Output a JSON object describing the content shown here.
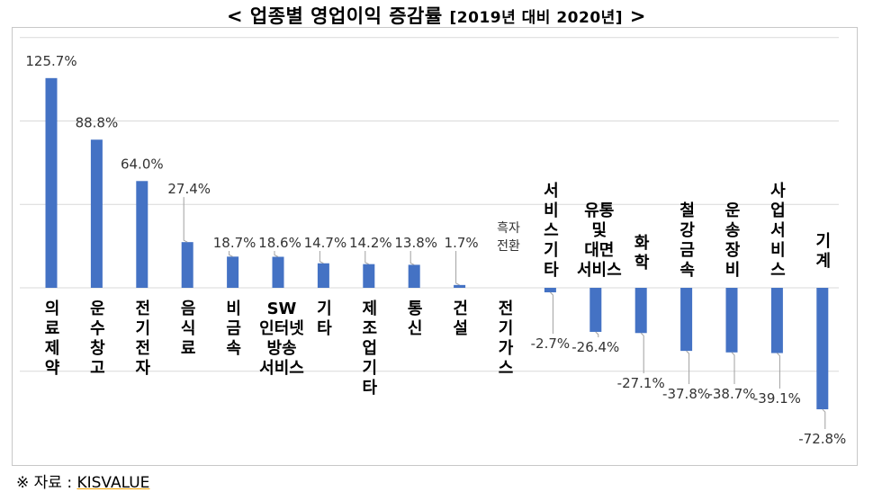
{
  "title": {
    "main": "< 업종별 영업이익 증감률",
    "sub": "[2019년 대비 2020년]",
    "end": ">"
  },
  "source": {
    "prefix": "※ 자료 :",
    "name": "KISVALUE"
  },
  "chart_data": {
    "type": "bar",
    "title": "< 업종별 영업이익 증감률 [2019년 대비 2020년] >",
    "xlabel": "",
    "ylabel": "",
    "unit": "%",
    "ylim": [
      -75,
      140
    ],
    "grid": true,
    "legend": "none",
    "bar_color": "#4472c4",
    "categories": [
      [
        "의",
        "료",
        "제",
        "약"
      ],
      [
        "운",
        "수",
        "창",
        "고"
      ],
      [
        "전",
        "기",
        "전",
        "자"
      ],
      [
        "음",
        "식",
        "료"
      ],
      [
        "비",
        "금",
        "속"
      ],
      [
        "SW",
        "인터넷",
        "방송",
        "서비스"
      ],
      [
        "기",
        "타"
      ],
      [
        "제",
        "조",
        "업",
        "기",
        "타"
      ],
      [
        "통",
        "신"
      ],
      [
        "건",
        "설"
      ],
      [
        "전",
        "기",
        "가",
        "스"
      ],
      [
        "서",
        "비",
        "스",
        "기",
        "타"
      ],
      [
        "유통",
        "및",
        "대면",
        "서비스"
      ],
      [
        "화",
        "학"
      ],
      [
        "철",
        "강",
        "금",
        "속"
      ],
      [
        "운",
        "송",
        "장",
        "비"
      ],
      [
        "사",
        "업",
        "서",
        "비",
        "스"
      ],
      [
        "기",
        "계"
      ]
    ],
    "values": [
      125.7,
      88.8,
      64.0,
      27.4,
      18.7,
      18.6,
      14.7,
      14.2,
      13.8,
      1.7,
      null,
      -2.7,
      -26.4,
      -27.1,
      -37.8,
      -38.7,
      -39.1,
      -72.8
    ],
    "data_labels": [
      "125.7%",
      "88.8%",
      "64.0%",
      "27.4%",
      "18.7%",
      "18.6%",
      "14.7%",
      "14.2%",
      "13.8%",
      "1.7%",
      "흑자\n전환",
      "-2.7%",
      "-26.4%",
      "-27.1%",
      "-37.8%",
      "-38.7%",
      "-39.1%",
      "-72.8%"
    ]
  }
}
